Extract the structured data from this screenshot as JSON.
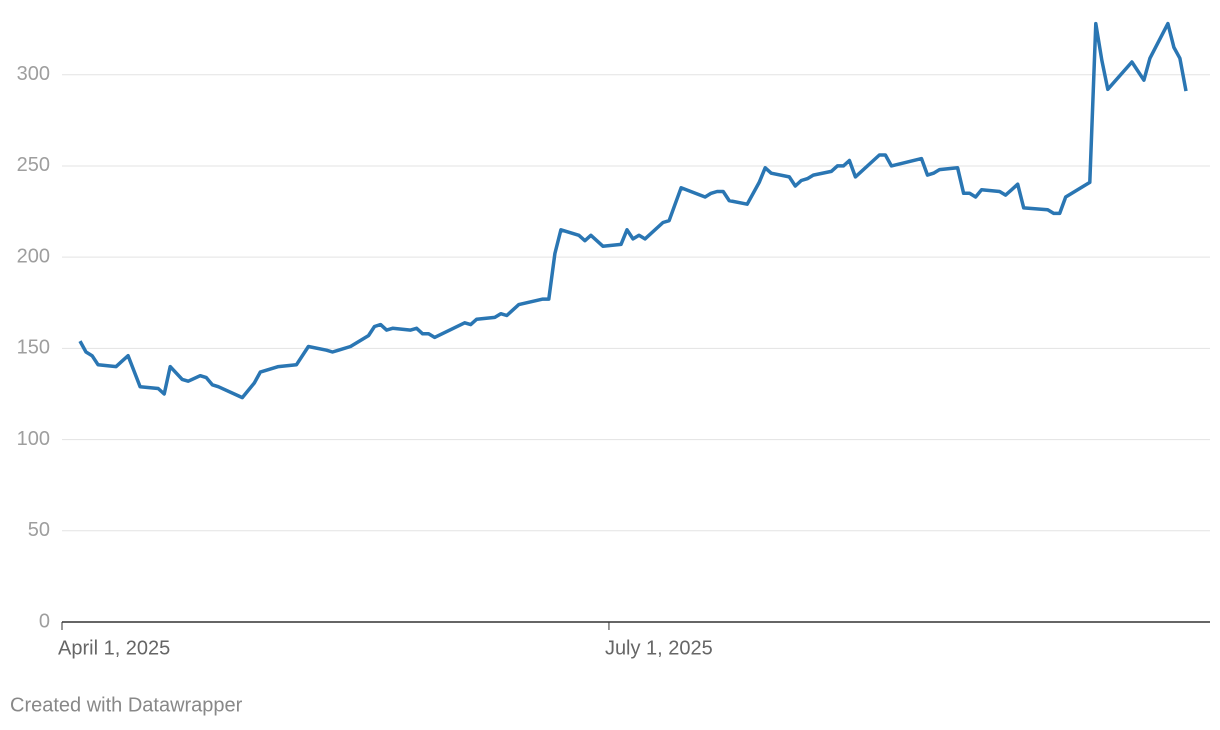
{
  "chart_data": {
    "type": "line",
    "x": [
      "2025-04-04",
      "2025-04-05",
      "2025-04-06",
      "2025-04-07",
      "2025-04-10",
      "2025-04-11",
      "2025-04-12",
      "2025-04-14",
      "2025-04-17",
      "2025-04-18",
      "2025-04-19",
      "2025-04-21",
      "2025-04-22",
      "2025-04-24",
      "2025-04-25",
      "2025-04-26",
      "2025-04-27",
      "2025-05-01",
      "2025-05-03",
      "2025-05-04",
      "2025-05-07",
      "2025-05-10",
      "2025-05-12",
      "2025-05-15",
      "2025-05-16",
      "2025-05-17",
      "2025-05-19",
      "2025-05-22",
      "2025-05-23",
      "2025-05-24",
      "2025-05-25",
      "2025-05-26",
      "2025-05-29",
      "2025-05-30",
      "2025-05-31",
      "2025-06-01",
      "2025-06-02",
      "2025-06-07",
      "2025-06-08",
      "2025-06-09",
      "2025-06-12",
      "2025-06-13",
      "2025-06-14",
      "2025-06-16",
      "2025-06-20",
      "2025-06-21",
      "2025-06-22",
      "2025-06-23",
      "2025-06-26",
      "2025-06-27",
      "2025-06-28",
      "2025-06-30",
      "2025-07-03",
      "2025-07-04",
      "2025-07-05",
      "2025-07-06",
      "2025-07-07",
      "2025-07-10",
      "2025-07-11",
      "2025-07-12",
      "2025-07-13",
      "2025-07-17",
      "2025-07-18",
      "2025-07-19",
      "2025-07-20",
      "2025-07-21",
      "2025-07-24",
      "2025-07-26",
      "2025-07-27",
      "2025-07-28",
      "2025-07-31",
      "2025-08-01",
      "2025-08-02",
      "2025-08-03",
      "2025-08-04",
      "2025-08-07",
      "2025-08-08",
      "2025-08-09",
      "2025-08-10",
      "2025-08-11",
      "2025-08-15",
      "2025-08-16",
      "2025-08-17",
      "2025-08-22",
      "2025-08-23",
      "2025-08-24",
      "2025-08-25",
      "2025-08-28",
      "2025-08-29",
      "2025-08-30",
      "2025-08-31",
      "2025-09-01",
      "2025-09-04",
      "2025-09-05",
      "2025-09-06",
      "2025-09-07",
      "2025-09-08",
      "2025-09-12",
      "2025-09-13",
      "2025-09-14",
      "2025-09-15",
      "2025-09-18",
      "2025-09-19",
      "2025-09-20",
      "2025-09-21",
      "2025-09-22",
      "2025-09-26",
      "2025-09-28",
      "2025-09-29",
      "2025-10-02",
      "2025-10-03",
      "2025-10-04",
      "2025-10-05"
    ],
    "series": [
      {
        "color": "#2a76b3",
        "values": [
          154,
          148,
          146,
          141,
          140,
          143,
          146,
          129,
          128,
          125,
          140,
          133,
          132,
          135,
          134,
          130,
          129,
          123,
          131,
          137,
          140,
          141,
          151,
          149,
          148,
          149,
          151,
          157,
          162,
          163,
          160,
          161,
          160,
          161,
          158,
          158,
          156,
          164,
          163,
          166,
          167,
          169,
          168,
          174,
          177,
          177,
          202,
          215,
          212,
          209,
          212,
          206,
          207,
          215,
          210,
          212,
          210,
          219,
          220,
          229,
          238,
          233,
          235,
          236,
          236,
          231,
          229,
          241,
          249,
          246,
          244,
          239,
          242,
          243,
          245,
          247,
          250,
          250,
          253,
          244,
          256,
          256,
          250,
          254,
          245,
          246,
          248,
          249,
          235,
          235,
          233,
          237,
          236,
          234,
          237,
          240,
          227,
          226,
          224,
          224,
          233,
          239,
          241,
          328,
          308,
          292,
          307,
          297,
          309,
          328,
          315,
          309,
          291
        ]
      }
    ],
    "xlim": [
      "2025-04-01",
      "2025-10-09"
    ],
    "xticks": [
      {
        "value": "2025-04-01",
        "label": "April 1, 2025"
      },
      {
        "value": "2025-07-01",
        "label": "July 1, 2025"
      }
    ],
    "ylim": [
      0,
      330
    ],
    "yticks": [
      0,
      50,
      100,
      150,
      200,
      250,
      300
    ],
    "grid": true,
    "footer": "Created with Datawrapper"
  }
}
